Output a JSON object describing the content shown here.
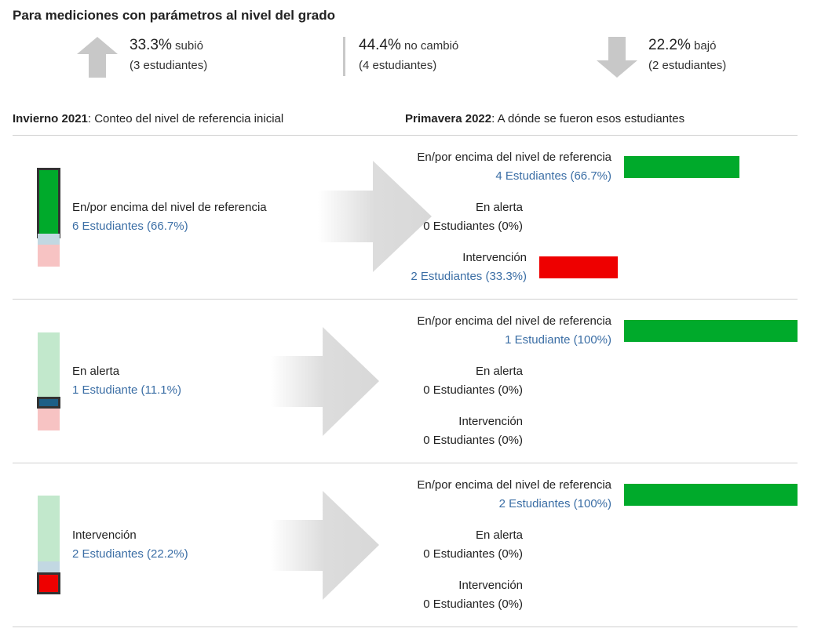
{
  "header": {
    "title": "Para mediciones con parámetros al nivel del grado"
  },
  "summary": [
    {
      "pct": "33.3%",
      "label": "subió",
      "count": "(3 estudiantes)",
      "icon": "arrow-up-icon"
    },
    {
      "pct": "44.4%",
      "label": "no cambió",
      "count": "(4 estudiantes)",
      "icon": "bar-icon"
    },
    {
      "pct": "22.2%",
      "label": "bajó",
      "count": "(2 estudiantes)",
      "icon": "arrow-down-icon"
    }
  ],
  "columns": {
    "left_bold": "Invierno 2021",
    "left_rest": ": Conteo del nivel de referencia inicial",
    "right_bold": "Primavera 2022",
    "right_rest": ": A dónde se fueron esos estudiantes"
  },
  "colors": {
    "green": "#00aa2b",
    "red": "#ee0000",
    "blue": "#1d5f86",
    "light_green": "#c2e8cc",
    "light_blue": "#c2d8e2",
    "light_red": "#f7c3c3",
    "link": "#3b6ea5"
  },
  "rows": [
    {
      "name": "En/por encima del nivel de referencia",
      "count": "6 Estudiantes (66.7%)",
      "highlight": "green",
      "outcomes": [
        {
          "name": "En/por encima del nivel de referencia",
          "count": "4 Estudiantes (66.7%)",
          "fraction": 0.667,
          "color": "green"
        },
        {
          "name": "En alerta",
          "count": "0 Estudiantes (0%)",
          "fraction": 0
        },
        {
          "name": "Intervención",
          "count": "2 Estudiantes (33.3%)",
          "fraction": 0.333,
          "color": "red"
        }
      ]
    },
    {
      "name": "En alerta",
      "count": "1 Estudiante (11.1%)",
      "highlight": "blue",
      "outcomes": [
        {
          "name": "En/por encima del nivel de referencia",
          "count": "1 Estudiante (100%)",
          "fraction": 1,
          "color": "green"
        },
        {
          "name": "En alerta",
          "count": "0 Estudiantes (0%)",
          "fraction": 0
        },
        {
          "name": "Intervención",
          "count": "0 Estudiantes (0%)",
          "fraction": 0
        }
      ]
    },
    {
      "name": "Intervención",
      "count": "2 Estudiantes (22.2%)",
      "highlight": "red",
      "outcomes": [
        {
          "name": "En/por encima del nivel de referencia",
          "count": "2 Estudiantes (100%)",
          "fraction": 1,
          "color": "green"
        },
        {
          "name": "En alerta",
          "count": "0 Estudiantes (0%)",
          "fraction": 0
        },
        {
          "name": "Intervención",
          "count": "0 Estudiantes (0%)",
          "fraction": 0
        }
      ]
    }
  ]
}
